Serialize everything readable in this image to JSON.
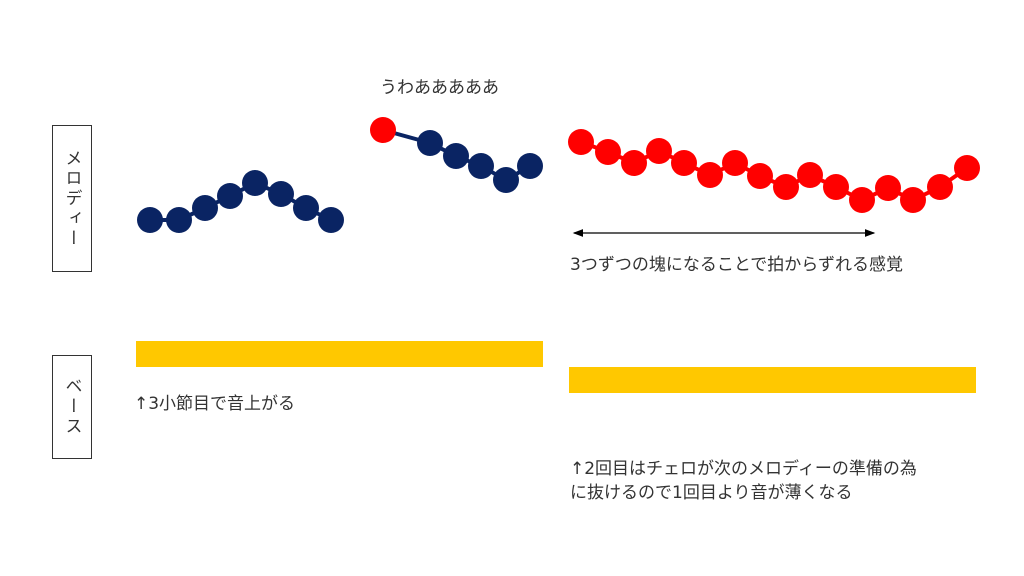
{
  "labels": {
    "melody": "メロディー",
    "bass": "ベース"
  },
  "annotations": {
    "exclaim": "うわあああああ",
    "grouping": "3つずつの塊になることで拍からずれる感覚",
    "bass_note1": "↑3小節目で音上がる",
    "bass_note2_line1": "↑2回目はチェロが次のメロディーの準備の為",
    "bass_note2_line2": "に抜けるので1回目より音が薄くなる"
  },
  "colors": {
    "navy": "#0a2463",
    "red": "#ff0000",
    "gold": "#ffc800"
  }
}
